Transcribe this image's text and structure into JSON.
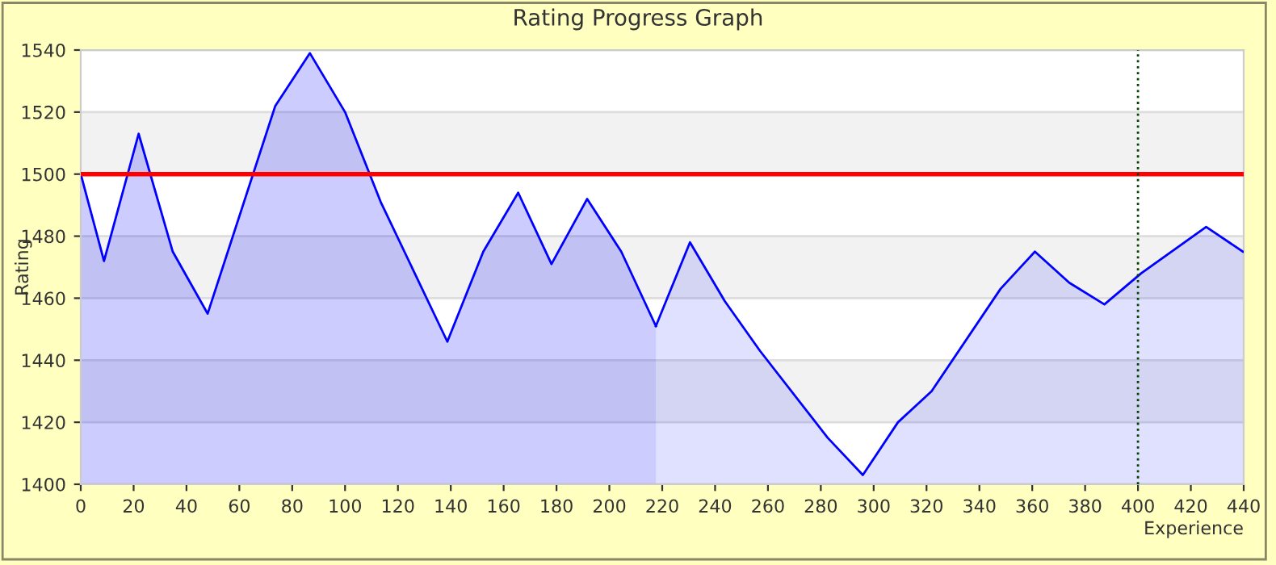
{
  "chart_data": {
    "type": "area",
    "title": "Rating Progress Graph",
    "xlabel": "Experience",
    "ylabel": "Rating",
    "series": [
      {
        "color": "#0000ff",
        "x": [
          0,
          8.8,
          21.9,
          34.8,
          48.0,
          73.6,
          86.7,
          100,
          113.5,
          138.7,
          152.3,
          165.5,
          178.1,
          191.6,
          204.5,
          217.6
        ],
        "values": [
          1500,
          1472,
          1513,
          1475,
          1455,
          1522,
          1539,
          1520,
          1491,
          1446,
          1475,
          1494,
          1471,
          1492,
          1475,
          1451
        ]
      },
      {
        "color": "#0000ff",
        "x": [
          217.6,
          230.5,
          243.7,
          257,
          282.6,
          295.9,
          309.2,
          321.9,
          348,
          361,
          374,
          387.3,
          401.2,
          425.8,
          439.7
        ],
        "values": [
          1451,
          1478,
          1459,
          1443,
          1415,
          1403,
          1420,
          1430,
          1463,
          1475,
          1465,
          1458,
          1468,
          1483,
          1475
        ]
      }
    ],
    "xlim": [
      0,
      440
    ],
    "ylim": [
      1400,
      1540
    ],
    "xticks": [
      0,
      20,
      40,
      60,
      80,
      100,
      120,
      140,
      160,
      180,
      200,
      220,
      240,
      260,
      280,
      300,
      320,
      340,
      360,
      380,
      400,
      420,
      440
    ],
    "yticks": [
      1400,
      1420,
      1440,
      1460,
      1480,
      1500,
      1520,
      1540
    ],
    "grid": "y",
    "ref_lines": [
      {
        "axis": "y",
        "value": 1500,
        "label": null,
        "color": "#ff0000",
        "line_style": "solid"
      },
      {
        "axis": "x",
        "value": 400,
        "label": null,
        "color": "#004400",
        "line_style": "dotted"
      }
    ]
  }
}
